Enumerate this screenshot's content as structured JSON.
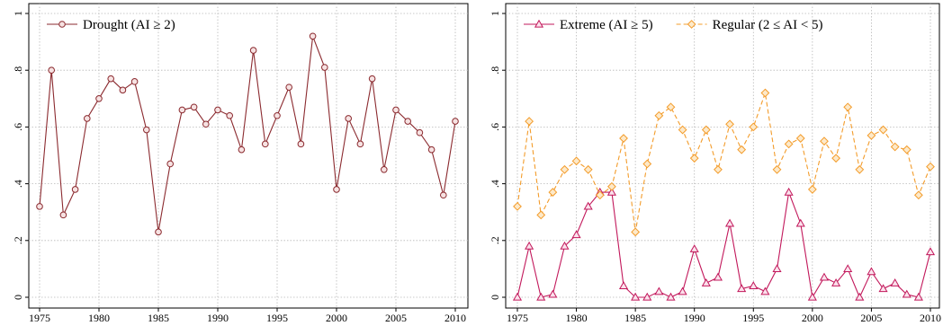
{
  "chart_data": [
    {
      "type": "line",
      "title": "",
      "xlabel": "",
      "ylabel": "",
      "xlim": [
        1975,
        2010
      ],
      "ylim": [
        0,
        1
      ],
      "x_ticks": [
        1975,
        1980,
        1985,
        1990,
        1995,
        2000,
        2005,
        2010
      ],
      "x_tick_labels": [
        "1975",
        "1980",
        "1985",
        "1990",
        "1995",
        "2000",
        "2005",
        "2010"
      ],
      "y_ticks": [
        0,
        0.2,
        0.4,
        0.6,
        0.8,
        1
      ],
      "y_tick_labels": [
        "0",
        ".2",
        ".4",
        ".6",
        ".8",
        "1"
      ],
      "grid": true,
      "legend_position": "top-left",
      "x": [
        1975,
        1976,
        1977,
        1978,
        1979,
        1980,
        1981,
        1982,
        1983,
        1984,
        1985,
        1986,
        1987,
        1988,
        1989,
        1990,
        1991,
        1992,
        1993,
        1994,
        1995,
        1996,
        1997,
        1998,
        1999,
        2000,
        2001,
        2002,
        2003,
        2004,
        2005,
        2006,
        2007,
        2008,
        2009,
        2010
      ],
      "series": [
        {
          "name": "Drought (AI ≥ 2)",
          "color": "#8b2a2f",
          "marker": "circle",
          "dash": "solid",
          "values": [
            0.32,
            0.8,
            0.29,
            0.38,
            0.63,
            0.7,
            0.77,
            0.73,
            0.76,
            0.59,
            0.23,
            0.47,
            0.66,
            0.67,
            0.61,
            0.66,
            0.64,
            0.52,
            0.87,
            0.54,
            0.64,
            0.74,
            0.54,
            0.92,
            0.81,
            0.38,
            0.63,
            0.54,
            0.77,
            0.45,
            0.66,
            0.62,
            0.58,
            0.52,
            0.36,
            0.62
          ]
        }
      ]
    },
    {
      "type": "line",
      "title": "",
      "xlabel": "",
      "ylabel": "",
      "xlim": [
        1975,
        2010
      ],
      "ylim": [
        0,
        1
      ],
      "x_ticks": [
        1975,
        1980,
        1985,
        1990,
        1995,
        2000,
        2005,
        2010
      ],
      "x_tick_labels": [
        "1975",
        "1980",
        "1985",
        "1990",
        "1995",
        "2000",
        "2005",
        "2010"
      ],
      "y_ticks": [
        0,
        0.2,
        0.4,
        0.6,
        0.8,
        1
      ],
      "y_tick_labels": [
        "0",
        ".2",
        ".4",
        ".6",
        ".8",
        "1"
      ],
      "grid": true,
      "legend_position": "top",
      "x": [
        1975,
        1976,
        1977,
        1978,
        1979,
        1980,
        1981,
        1982,
        1983,
        1984,
        1985,
        1986,
        1987,
        1988,
        1989,
        1990,
        1991,
        1992,
        1993,
        1994,
        1995,
        1996,
        1997,
        1998,
        1999,
        2000,
        2001,
        2002,
        2003,
        2004,
        2005,
        2006,
        2007,
        2008,
        2009,
        2010
      ],
      "series": [
        {
          "name": "Extreme (AI ≥ 5)",
          "color": "#c2185b",
          "marker": "triangle",
          "dash": "solid",
          "values": [
            0.0,
            0.18,
            0.0,
            0.01,
            0.18,
            0.22,
            0.32,
            0.37,
            0.37,
            0.04,
            0.0,
            0.0,
            0.02,
            0.0,
            0.02,
            0.17,
            0.05,
            0.07,
            0.26,
            0.03,
            0.04,
            0.02,
            0.1,
            0.37,
            0.26,
            0.0,
            0.07,
            0.05,
            0.1,
            0.0,
            0.09,
            0.03,
            0.05,
            0.01,
            0.0,
            0.16
          ]
        },
        {
          "name": "Regular (2 ≤ AI < 5)",
          "color": "#f39c2b",
          "marker": "diamond",
          "dash": "dashed",
          "values": [
            0.32,
            0.62,
            0.29,
            0.37,
            0.45,
            0.48,
            0.45,
            0.36,
            0.39,
            0.56,
            0.23,
            0.47,
            0.64,
            0.67,
            0.59,
            0.49,
            0.59,
            0.45,
            0.61,
            0.52,
            0.6,
            0.72,
            0.45,
            0.54,
            0.56,
            0.38,
            0.55,
            0.49,
            0.67,
            0.45,
            0.57,
            0.59,
            0.53,
            0.52,
            0.36,
            0.46
          ]
        }
      ]
    }
  ]
}
